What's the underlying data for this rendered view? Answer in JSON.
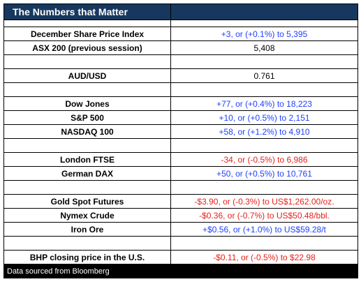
{
  "header": {
    "title": "The Numbers that Matter"
  },
  "groups": [
    [
      {
        "label": "December Share Price Index",
        "value": "+3, or (+0.1%) to 5,395",
        "color": "#1f3fff"
      },
      {
        "label": "ASX 200 (previous session)",
        "value": "5,408",
        "color": "#000000"
      }
    ],
    [
      {
        "label": "AUD/USD",
        "value": "0.761",
        "color": "#000000"
      }
    ],
    [
      {
        "label": "Dow Jones",
        "value": "+77, or (+0.4%) to 18,223",
        "color": "#1f3fff"
      },
      {
        "label": "S&P 500",
        "value": "+10, or (+0.5%) to 2,151",
        "color": "#1f3fff"
      },
      {
        "label": "NASDAQ 100",
        "value": "+58, or (+1.2%) to 4,910",
        "color": "#1f3fff"
      }
    ],
    [
      {
        "label": "London FTSE",
        "value": "-34, or (-0.5%) to 6,986",
        "color": "#e8201a"
      },
      {
        "label": "German DAX",
        "value": "+50, or (+0.5%) to 10,761",
        "color": "#1f3fff"
      }
    ],
    [
      {
        "label": "Gold Spot Futures",
        "value": "-$3.90, or (-0.3%) to US$1,262.00/oz.",
        "color": "#e8201a"
      },
      {
        "label": "Nymex Crude",
        "value": "-$0.36, or (-0.7%) to US$50.48/bbl.",
        "color": "#e8201a"
      },
      {
        "label": "Iron Ore",
        "value": "+$0.56, or (+1.0%) to US$59.28/t",
        "color": "#1f3fff"
      }
    ],
    [
      {
        "label": "BHP closing price in the U.S.",
        "value": "-$0.11, or (-0.5%) to $22.98",
        "color": "#e8201a"
      }
    ]
  ],
  "footer": {
    "source": "Data sourced from Bloomberg"
  }
}
